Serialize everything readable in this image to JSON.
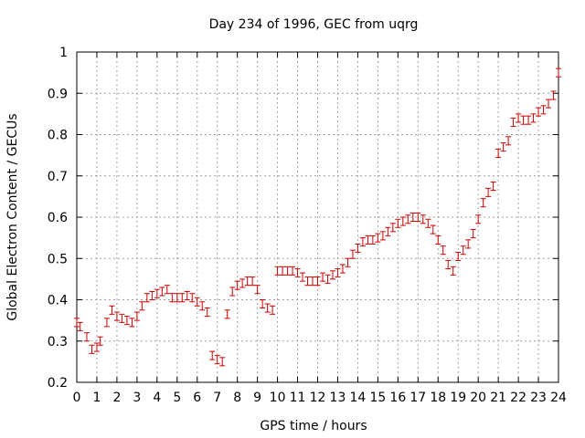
{
  "chart_data": {
    "type": "scatter",
    "title": "Day 234 of 1996, GEC from uqrg",
    "xlabel": "GPS time / hours",
    "ylabel": "Global Electron Content / GECUs",
    "xlim": [
      0,
      24
    ],
    "ylim": [
      0.2,
      1.0
    ],
    "xticks": [
      0,
      1,
      2,
      3,
      4,
      5,
      6,
      7,
      8,
      9,
      10,
      11,
      12,
      13,
      14,
      15,
      16,
      17,
      18,
      19,
      20,
      21,
      22,
      23,
      24
    ],
    "yticks": [
      0.2,
      0.3,
      0.4,
      0.5,
      0.6,
      0.7,
      0.8,
      0.9,
      1.0
    ],
    "ytick_labels": [
      "0.2",
      "0.3",
      "0.4",
      "0.5",
      "0.6",
      "0.7",
      "0.8",
      "0.9",
      "1"
    ],
    "grid": true,
    "marker_color": "#cc0000",
    "error_bar": 0.01,
    "series": [
      {
        "x": [
          0.0,
          0.17,
          0.5,
          0.75,
          1.0,
          1.17,
          1.5,
          1.75,
          2.0,
          2.25,
          2.5,
          2.75,
          3.0,
          3.25,
          3.5,
          3.75,
          4.0,
          4.25,
          4.5,
          4.75,
          5.0,
          5.25,
          5.5,
          5.75,
          6.0,
          6.25,
          6.5,
          6.75,
          7.0,
          7.25,
          7.5,
          7.75,
          8.0,
          8.25,
          8.5,
          8.75,
          9.0,
          9.25,
          9.5,
          9.75,
          10.0,
          10.25,
          10.5,
          10.75,
          11.0,
          11.25,
          11.5,
          11.75,
          12.0,
          12.25,
          12.5,
          12.75,
          13.0,
          13.25,
          13.5,
          13.75,
          14.0,
          14.25,
          14.5,
          14.75,
          15.0,
          15.25,
          15.5,
          15.75,
          16.0,
          16.25,
          16.5,
          16.75,
          17.0,
          17.25,
          17.5,
          17.75,
          18.0,
          18.25,
          18.5,
          18.75,
          19.0,
          19.25,
          19.5,
          19.75,
          20.0,
          20.25,
          20.5,
          20.75,
          21.0,
          21.25,
          21.5,
          21.75,
          22.0,
          22.25,
          22.5,
          22.75,
          23.0,
          23.25,
          23.5,
          23.75,
          24.0
        ],
        "y": [
          0.345,
          0.335,
          0.31,
          0.28,
          0.285,
          0.3,
          0.345,
          0.375,
          0.36,
          0.355,
          0.35,
          0.345,
          0.36,
          0.385,
          0.405,
          0.41,
          0.415,
          0.42,
          0.425,
          0.405,
          0.405,
          0.405,
          0.41,
          0.405,
          0.395,
          0.385,
          0.37,
          0.265,
          0.255,
          0.25,
          0.365,
          0.42,
          0.435,
          0.44,
          0.445,
          0.445,
          0.425,
          0.39,
          0.38,
          0.375,
          0.47,
          0.47,
          0.47,
          0.47,
          0.465,
          0.455,
          0.445,
          0.445,
          0.445,
          0.455,
          0.45,
          0.46,
          0.465,
          0.475,
          0.49,
          0.51,
          0.525,
          0.54,
          0.545,
          0.545,
          0.55,
          0.555,
          0.565,
          0.575,
          0.585,
          0.59,
          0.595,
          0.6,
          0.6,
          0.595,
          0.585,
          0.57,
          0.545,
          0.52,
          0.485,
          0.47,
          0.505,
          0.52,
          0.535,
          0.56,
          0.595,
          0.635,
          0.66,
          0.675,
          0.755,
          0.77,
          0.785,
          0.83,
          0.84,
          0.835,
          0.835,
          0.84,
          0.855,
          0.86,
          0.875,
          0.895,
          0.95
        ]
      }
    ]
  }
}
